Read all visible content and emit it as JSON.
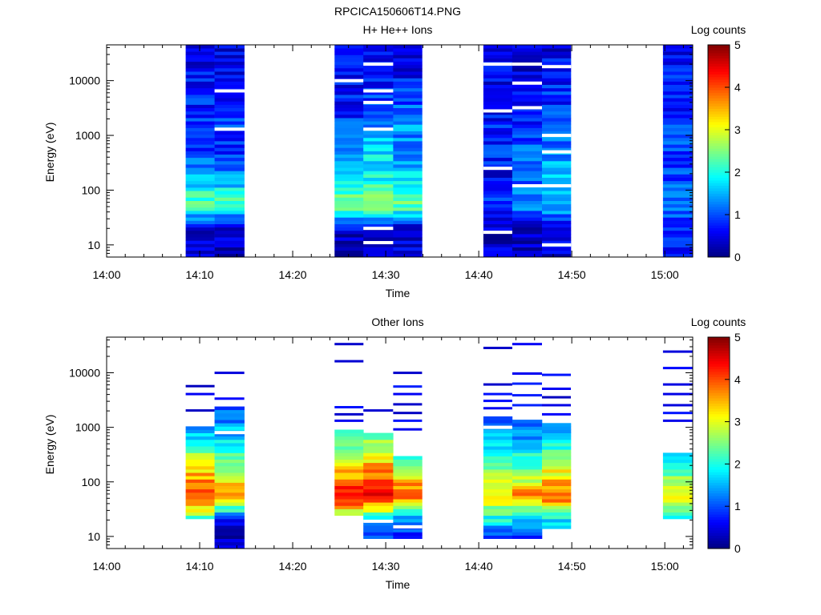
{
  "figure": {
    "title": "RPCICA150606T14.PNG"
  },
  "chart_data": [
    {
      "type": "heatmap",
      "title": "H+ He++ Ions",
      "xlabel": "Time",
      "ylabel": "Energy (eV)",
      "x_ticks": [
        "14:00",
        "14:10",
        "14:20",
        "14:30",
        "14:40",
        "14:50",
        "15:00"
      ],
      "x_range_minutes": [
        0,
        63
      ],
      "y_scale": "log",
      "y_range": [
        6,
        45000
      ],
      "y_ticks": [
        "10",
        "100",
        "1000",
        "10000"
      ],
      "colorbar": {
        "label": "Log counts",
        "range": [
          0,
          5
        ],
        "ticks": [
          "0",
          "1",
          "2",
          "3",
          "4",
          "5"
        ]
      },
      "columns": [
        {
          "t0": 8.5,
          "t1": 11.6,
          "profile": [
            0.5,
            0.4,
            2.4,
            1.5,
            0.9,
            0.9,
            0.7,
            0.6,
            0.6
          ],
          "gaps": []
        },
        {
          "t0": 11.6,
          "t1": 14.8,
          "profile": [
            0.3,
            0.4,
            2.2,
            1.4,
            0.9,
            0.9,
            0.6,
            0.5,
            0.5
          ],
          "gaps": [
            1300,
            6500
          ]
        },
        {
          "t0": 24.5,
          "t1": 27.6,
          "profile": [
            0.2,
            0.3,
            2.6,
            1.7,
            1.2,
            0.9,
            0.7,
            0.6,
            0.6
          ],
          "gaps": [
            10000
          ]
        },
        {
          "t0": 27.6,
          "t1": 30.8,
          "profile": [
            0.3,
            0.3,
            2.8,
            1.9,
            1.7,
            1.4,
            0.9,
            0.6,
            0.5
          ],
          "gaps": [
            11,
            20,
            1300,
            4000,
            6500,
            20000
          ]
        },
        {
          "t0": 30.8,
          "t1": 33.9,
          "profile": [
            0.5,
            0.3,
            2.5,
            1.6,
            1.4,
            1.3,
            0.9,
            0.6,
            0.5
          ],
          "gaps": []
        },
        {
          "t0": 40.5,
          "t1": 43.6,
          "profile": [
            0.6,
            0.3,
            1.0,
            0.6,
            0.8,
            0.7,
            0.6,
            0.5,
            0.5
          ],
          "gaps": [
            17,
            250,
            2800,
            20000
          ]
        },
        {
          "t0": 43.6,
          "t1": 46.8,
          "profile": [
            0.3,
            0.3,
            1.3,
            1.1,
            1.0,
            0.8,
            0.6,
            0.5,
            0.5
          ],
          "gaps": [
            120,
            3200,
            9000,
            20000
          ]
        },
        {
          "t0": 46.8,
          "t1": 49.9,
          "profile": [
            0.5,
            0.5,
            1.6,
            1.7,
            1.3,
            1.0,
            0.8,
            0.6,
            0.5
          ],
          "gaps": [
            10,
            120,
            500,
            1000,
            18000
          ]
        },
        {
          "t0": 59.8,
          "t1": 63.0,
          "profile": [
            0.7,
            0.8,
            1.1,
            1.0,
            0.9,
            0.9,
            0.8,
            0.7,
            0.6
          ],
          "gaps": []
        }
      ]
    },
    {
      "type": "heatmap",
      "title": "Other Ions",
      "xlabel": "Time",
      "ylabel": "Energy (eV)",
      "x_ticks": [
        "14:00",
        "14:10",
        "14:20",
        "14:30",
        "14:40",
        "14:50",
        "15:00"
      ],
      "x_range_minutes": [
        0,
        63
      ],
      "y_scale": "log",
      "y_range": [
        6,
        45000
      ],
      "y_ticks": [
        "10",
        "100",
        "1000",
        "10000"
      ],
      "colorbar": {
        "label": "Log counts",
        "range": [
          0,
          5
        ],
        "ticks": [
          "0",
          "1",
          "2",
          "3",
          "4",
          "5"
        ]
      },
      "columns": [
        {
          "t0": 8.5,
          "t1": 11.6,
          "fill": [
            20,
            1000
          ],
          "profile": [
            0.4,
            2.0,
            4.3,
            3.2,
            2.0,
            1.0,
            0.5,
            0.4,
            0.4
          ],
          "sparse": [
            2000,
            4000,
            5600
          ],
          "gaps": []
        },
        {
          "t0": 11.6,
          "t1": 14.8,
          "fill": [
            6,
            2400
          ],
          "profile": [
            0.2,
            0.5,
            3.8,
            2.6,
            1.8,
            1.2,
            0.6,
            0.4,
            0.4
          ],
          "sparse": [
            3300,
            9800
          ],
          "gaps": [
            800
          ]
        },
        {
          "t0": 24.5,
          "t1": 27.6,
          "fill": [
            25,
            900
          ],
          "profile": [
            0.4,
            2.0,
            4.5,
            3.3,
            2.2,
            1.2,
            0.6,
            0.4,
            0.4
          ],
          "sparse": [
            1300,
            1700,
            2300,
            16000,
            33000
          ],
          "gaps": []
        },
        {
          "t0": 27.6,
          "t1": 30.8,
          "fill": [
            9,
            800
          ],
          "profile": [
            0.3,
            1.6,
            4.6,
            3.6,
            2.6,
            1.4,
            0.6,
            0.4,
            0.4
          ],
          "sparse": [
            2000
          ],
          "gaps": [
            19
          ]
        },
        {
          "t0": 30.8,
          "t1": 33.9,
          "fill": [
            9,
            280
          ],
          "profile": [
            0.5,
            1.0,
            4.2,
            2.7,
            1.7,
            0.6,
            0.4,
            0.4,
            0.4
          ],
          "sparse": [
            900,
            1300,
            1800,
            2600,
            4000,
            5500,
            9800
          ],
          "gaps": [
            15
          ]
        },
        {
          "t0": 40.5,
          "t1": 43.6,
          "fill": [
            9,
            1500
          ],
          "profile": [
            0.2,
            1.8,
            3.4,
            2.6,
            1.8,
            1.2,
            0.7,
            0.4,
            0.4
          ],
          "sparse": [
            2200,
            3000,
            4000,
            6000,
            28000
          ],
          "gaps": [
            1000
          ]
        },
        {
          "t0": 43.6,
          "t1": 46.8,
          "fill": [
            9,
            1400
          ],
          "profile": [
            0.2,
            1.5,
            3.7,
            2.4,
            1.6,
            1.1,
            0.7,
            0.4,
            0.4
          ],
          "sparse": [
            2500,
            3800,
            6200,
            9500,
            33000
          ],
          "gaps": []
        },
        {
          "t0": 46.8,
          "t1": 49.9,
          "fill": [
            14,
            1200
          ],
          "profile": [
            0.4,
            1.7,
            4.1,
            2.9,
            2.0,
            1.3,
            0.7,
            0.4,
            0.4
          ],
          "sparse": [
            1700,
            2500,
            3500,
            5000,
            9000
          ],
          "gaps": []
        },
        {
          "t0": 59.8,
          "t1": 63.0,
          "fill": [
            20,
            350
          ],
          "profile": [
            0.4,
            1.6,
            3.2,
            2.1,
            1.4,
            0.8,
            0.4,
            0.4,
            0.4
          ],
          "sparse": [
            1300,
            1800,
            2500,
            4000,
            6000,
            12000,
            24000
          ],
          "gaps": []
        }
      ]
    }
  ]
}
